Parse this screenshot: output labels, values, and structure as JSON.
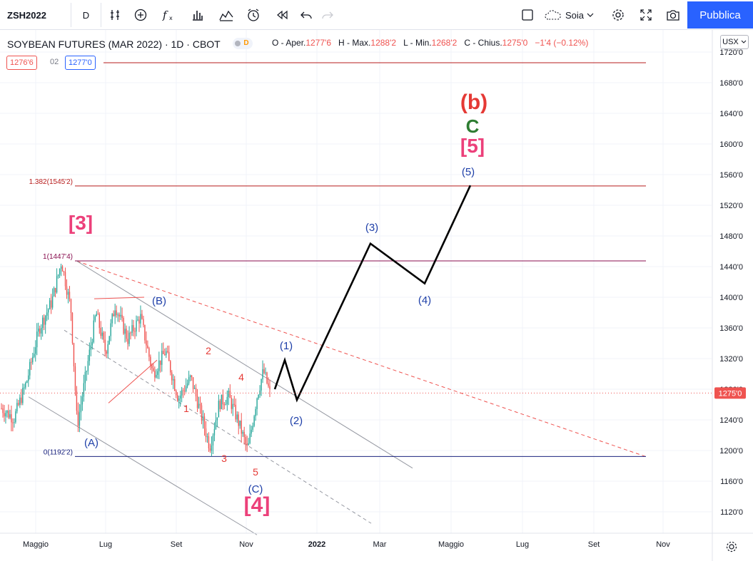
{
  "toolbar": {
    "symbol": "ZSH2022",
    "interval": "D",
    "layout_name": "Soia",
    "publish_label": "Pubblica",
    "icons": [
      "compare-icon",
      "add-symbol-icon",
      "indicators-icon",
      "bar-style-icon",
      "templates-icon",
      "alert-icon",
      "replay-icon",
      "undo-icon",
      "redo-icon",
      "layout-icon",
      "cloud-icon",
      "settings-icon",
      "fullscreen-icon",
      "snapshot-icon"
    ]
  },
  "legend": {
    "title": "SOYBEAN FUTURES (MAR 2022) · 1D · CBOT",
    "d_badge": "D",
    "o_label": "O - Aper.",
    "o_value": "1277'6",
    "h_label": "H - Max.",
    "h_value": "1288'2",
    "l_label": "L - Min.",
    "l_value": "1268'2",
    "c_label": "C - Chius.",
    "c_value": "1275'0",
    "change": "−1'4 (−0.12%)",
    "bid": "1276'6",
    "spread": "02",
    "ask": "1277'0"
  },
  "price_axis": {
    "currency": "USX",
    "current_price": "1275'0",
    "current_price_color": "#ef5350",
    "ticks": [
      "1720'0",
      "1680'0",
      "1640'0",
      "1600'0",
      "1560'0",
      "1520'0",
      "1480'0",
      "1440'0",
      "1400'0",
      "1360'0",
      "1320'0",
      "1280'0",
      "1240'0",
      "1200'0",
      "1160'0",
      "1120'0"
    ]
  },
  "time_axis": {
    "labels": [
      "Maggio",
      "Lug",
      "Set",
      "Nov",
      "2022",
      "Mar",
      "Maggio",
      "Lug",
      "Set",
      "Nov"
    ]
  },
  "chart_data": {
    "type": "candlestick",
    "symbol": "ZSH2022",
    "interval": "1D",
    "ylim": [
      1100,
      1730
    ],
    "price_lines": [
      {
        "label": "1.382(1545'2)",
        "value": 1545.25,
        "color": "#b71c1c"
      },
      {
        "label": "1(1447'4)",
        "value": 1447.5,
        "color": "#880e4f"
      },
      {
        "label": "0(1192'2)",
        "value": 1192.25,
        "color": "#1a237e"
      },
      {
        "label": "",
        "value": 1706,
        "color": "#b71c1c"
      }
    ],
    "price_path": [
      [
        2021.3,
        1255
      ],
      [
        2021.34,
        1242
      ],
      [
        2021.38,
        1290
      ],
      [
        2021.42,
        1360
      ],
      [
        2021.46,
        1395
      ],
      [
        2021.49,
        1447
      ],
      [
        2021.52,
        1385
      ],
      [
        2021.54,
        1232
      ],
      [
        2021.57,
        1305
      ],
      [
        2021.6,
        1380
      ],
      [
        2021.63,
        1328
      ],
      [
        2021.66,
        1390
      ],
      [
        2021.7,
        1345
      ],
      [
        2021.74,
        1375
      ],
      [
        2021.78,
        1300
      ],
      [
        2021.82,
        1330
      ],
      [
        2021.86,
        1268
      ],
      [
        2021.9,
        1295
      ],
      [
        2021.93,
        1250
      ],
      [
        2021.96,
        1205
      ],
      [
        2021.99,
        1262
      ],
      [
        2022.02,
        1270
      ],
      [
        2022.05,
        1238
      ],
      [
        2022.08,
        1200
      ],
      [
        2022.11,
        1272
      ],
      [
        2022.13,
        1304
      ],
      [
        2022.15,
        1275
      ]
    ],
    "projection": {
      "x": [
        2022.17,
        2022.21,
        2022.26,
        2022.5,
        2022.62,
        2022.84
      ],
      "y": [
        1280,
        1318,
        1266,
        1470,
        1418,
        1546
      ]
    },
    "wave_labels": [
      {
        "text": "(b)",
        "color": "#e53935"
      },
      {
        "text": "C",
        "color": "#2e7d32"
      },
      {
        "text": "[5]",
        "color": "#ec407a"
      },
      {
        "text": "(5)",
        "color": "#1e3fa8"
      },
      {
        "text": "(3)",
        "color": "#1e3fa8"
      },
      {
        "text": "(4)",
        "color": "#1e3fa8"
      },
      {
        "text": "(1)",
        "color": "#1e3fa8"
      },
      {
        "text": "(2)",
        "color": "#1e3fa8"
      },
      {
        "text": "[3]",
        "color": "#ec407a"
      },
      {
        "text": "(B)",
        "color": "#1e3fa8"
      },
      {
        "text": "(A)",
        "color": "#1e3fa8"
      },
      {
        "text": "(C)",
        "color": "#1e3fa8"
      },
      {
        "text": "[4]",
        "color": "#ec407a"
      },
      {
        "text": "1",
        "color": "#e53935"
      },
      {
        "text": "2",
        "color": "#e53935"
      },
      {
        "text": "3",
        "color": "#e53935"
      },
      {
        "text": "4",
        "color": "#e53935"
      },
      {
        "text": "5",
        "color": "#e53935"
      }
    ]
  }
}
